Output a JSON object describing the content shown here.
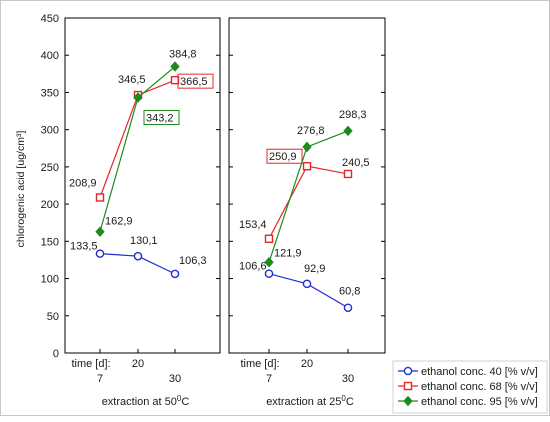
{
  "chart_data": {
    "type": "line",
    "ylabel": "chlorogenic acid [ug/cm³]",
    "ylim": [
      0,
      450
    ],
    "yticks": [
      "0",
      "50",
      "100",
      "150",
      "200",
      "250",
      "300",
      "350",
      "400",
      "450"
    ],
    "x_title": "time [d]:",
    "x": [
      7,
      20,
      30
    ],
    "xtick_labels": [
      "7",
      "20",
      "30"
    ],
    "grid": false,
    "legend_position": "bottom-right",
    "panels": [
      {
        "title": "extraction at 50",
        "title_sup": "0",
        "title_suffix": "C",
        "series": [
          {
            "key": "s40",
            "values": [
              133.5,
              130.1,
              106.3
            ],
            "labels": [
              "133,5",
              "130,1",
              "106,3"
            ]
          },
          {
            "key": "s68",
            "values": [
              208.9,
              346.5,
              366.5
            ],
            "labels": [
              "208,9",
              "346,5",
              "366,5"
            ]
          },
          {
            "key": "s95",
            "values": [
              162.9,
              343.2,
              384.8
            ],
            "labels": [
              "162,9",
              "343,2",
              "384,8"
            ]
          }
        ]
      },
      {
        "title": "extraction at 25",
        "title_sup": "0",
        "title_suffix": "C",
        "series": [
          {
            "key": "s40",
            "values": [
              106.6,
              92.9,
              60.8
            ],
            "labels": [
              "106,6",
              "92,9",
              "60,8"
            ]
          },
          {
            "key": "s68",
            "values": [
              153.4,
              250.9,
              240.5
            ],
            "labels": [
              "153,4",
              "250,9",
              "240,5"
            ]
          },
          {
            "key": "s95",
            "values": [
              121.9,
              276.8,
              298.3
            ],
            "labels": [
              "121,9",
              "276,8",
              "298,3"
            ]
          }
        ]
      }
    ],
    "legend": [
      {
        "key": "s40",
        "name": "ethanol conc. 40 [% v/v]",
        "color": "#1f2fd6",
        "marker": "circle"
      },
      {
        "key": "s68",
        "name": "ethanol conc. 68 [% v/v]",
        "color": "#e4262a",
        "marker": "square"
      },
      {
        "key": "s95",
        "name": "ethanol conc. 95 [% v/v]",
        "color": "#1e8a1e",
        "marker": "diamond"
      }
    ]
  }
}
